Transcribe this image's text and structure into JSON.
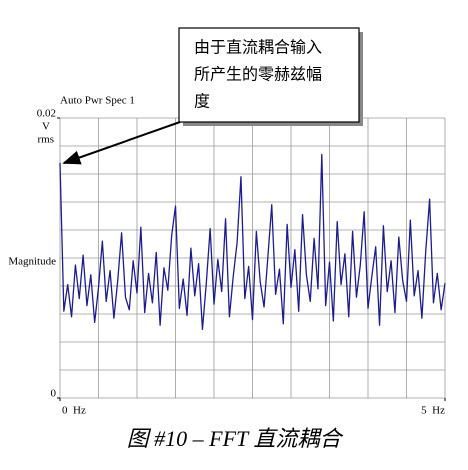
{
  "chart_data": {
    "type": "line",
    "title": "Auto Pwr Spec 1",
    "y_label": "Magnitude",
    "y_unit": [
      "V",
      "rms"
    ],
    "caption": "图 #10 – FFT 直流耦合",
    "annotation": [
      "由于直流耦合输入",
      "所产生的零赫兹幅",
      "度"
    ],
    "xlim": [
      0,
      5
    ],
    "ylim": [
      0,
      0.02
    ],
    "xticks": [
      {
        "value": 0,
        "label": "0  Hz"
      },
      {
        "value": 5,
        "label": "5  Hz"
      }
    ],
    "yticks": [
      0,
      0.02
    ],
    "grid": true,
    "grid_divisions": [
      10,
      10
    ],
    "series": [
      {
        "name": "Auto Pwr Spec 1",
        "color": "#1c1c8f",
        "x": [
          0,
          0.05,
          0.1,
          0.15,
          0.2,
          0.25,
          0.3,
          0.35,
          0.4,
          0.45,
          0.5,
          0.55,
          0.6,
          0.65,
          0.7,
          0.75,
          0.8,
          0.85,
          0.9,
          0.95,
          1,
          1.05,
          1.1,
          1.15,
          1.2,
          1.25,
          1.3,
          1.35,
          1.4,
          1.45,
          1.5,
          1.55,
          1.6,
          1.65,
          1.7,
          1.75,
          1.8,
          1.85,
          1.9,
          1.95,
          2,
          2.05,
          2.1,
          2.15,
          2.2,
          2.25,
          2.3,
          2.35,
          2.4,
          2.45,
          2.5,
          2.55,
          2.6,
          2.65,
          2.7,
          2.75,
          2.8,
          2.85,
          2.9,
          2.95,
          3,
          3.05,
          3.1,
          3.15,
          3.2,
          3.25,
          3.3,
          3.35,
          3.4,
          3.45,
          3.5,
          3.55,
          3.6,
          3.65,
          3.7,
          3.75,
          3.8,
          3.85,
          3.9,
          3.95,
          4,
          4.05,
          4.1,
          4.15,
          4.2,
          4.25,
          4.3,
          4.35,
          4.4,
          4.45,
          4.5,
          4.55,
          4.6,
          4.65,
          4.7,
          4.75,
          4.8,
          4.85,
          4.9,
          4.95,
          5
        ],
        "values": [
          0.0168,
          0.0062,
          0.0081,
          0.0058,
          0.0095,
          0.0071,
          0.0102,
          0.0066,
          0.0088,
          0.0054,
          0.0079,
          0.0112,
          0.0069,
          0.0091,
          0.0057,
          0.0084,
          0.0118,
          0.0072,
          0.0063,
          0.0098,
          0.0075,
          0.0122,
          0.0061,
          0.0089,
          0.0068,
          0.0104,
          0.0052,
          0.0093,
          0.0077,
          0.0116,
          0.0137,
          0.0064,
          0.0085,
          0.0059,
          0.0107,
          0.0073,
          0.0096,
          0.0049,
          0.0082,
          0.0121,
          0.0067,
          0.0099,
          0.0076,
          0.0128,
          0.0058,
          0.0087,
          0.0111,
          0.0158,
          0.0071,
          0.0094,
          0.0056,
          0.0119,
          0.0083,
          0.0065,
          0.0101,
          0.0138,
          0.0074,
          0.0092,
          0.0053,
          0.0124,
          0.0079,
          0.0106,
          0.0062,
          0.0131,
          0.0088,
          0.0069,
          0.0114,
          0.0078,
          0.0174,
          0.0066,
          0.0097,
          0.0055,
          0.0126,
          0.0081,
          0.0103,
          0.0058,
          0.0119,
          0.0072,
          0.0095,
          0.0133,
          0.0064,
          0.0087,
          0.0108,
          0.0052,
          0.0123,
          0.0076,
          0.0098,
          0.0061,
          0.0115,
          0.0084,
          0.0069,
          0.0127,
          0.0073,
          0.0091,
          0.0057,
          0.0105,
          0.0142,
          0.0068,
          0.0089,
          0.0063,
          0.0082
        ]
      }
    ]
  }
}
